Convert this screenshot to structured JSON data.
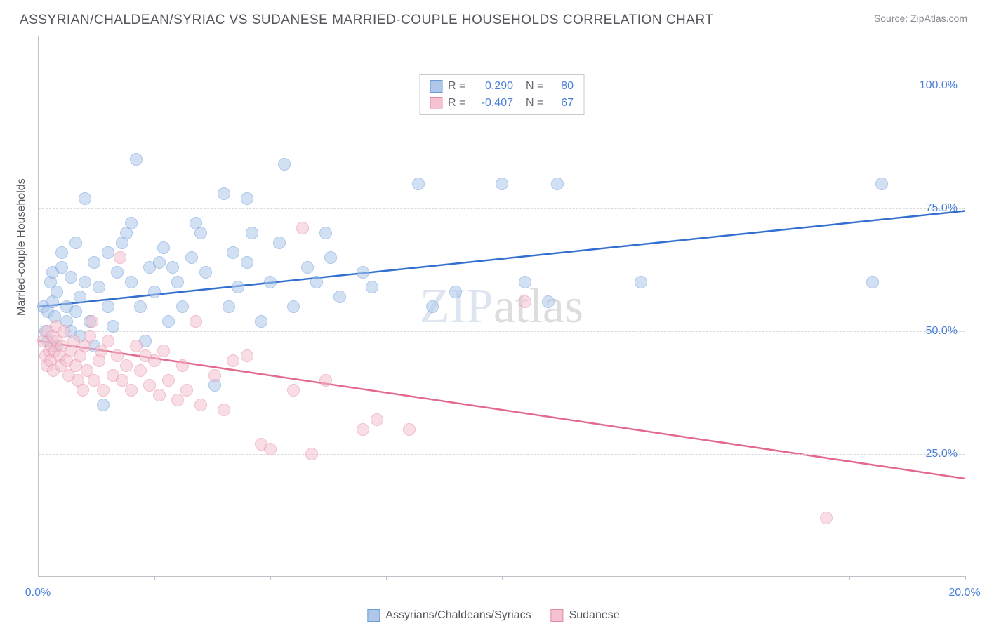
{
  "title": "ASSYRIAN/CHALDEAN/SYRIAC VS SUDANESE MARRIED-COUPLE HOUSEHOLDS CORRELATION CHART",
  "source": "Source: ZipAtlas.com",
  "watermark_z": "ZIP",
  "watermark_rest": "atlas",
  "y_axis_title": "Married-couple Households",
  "chart": {
    "type": "scatter",
    "xlim": [
      0,
      20
    ],
    "ylim": [
      0,
      110
    ],
    "x_ticks": [
      0,
      2.5,
      5,
      7.5,
      10,
      12.5,
      15,
      17.5,
      20
    ],
    "x_tick_labels": {
      "0": "0.0%",
      "20": "20.0%"
    },
    "y_gridlines": [
      25,
      50,
      75,
      100
    ],
    "y_tick_labels": {
      "25": "25.0%",
      "50": "50.0%",
      "75": "75.0%",
      "100": "100.0%"
    },
    "background_color": "#ffffff",
    "grid_color": "#d8d8de",
    "axis_color": "#c0c0c8",
    "tick_label_color": "#4a7fd8",
    "marker_radius": 9,
    "marker_opacity": 0.55,
    "series": [
      {
        "name": "Assyrians/Chaldeans/Syriacs",
        "fill_color": "#afc8ea",
        "stroke_color": "#6a9ad8",
        "line_color": "#336fd0",
        "R": "0.290",
        "N": "80",
        "trend": {
          "x1": 0,
          "y1": 55,
          "x2": 20,
          "y2": 74.5
        },
        "points": [
          [
            0.1,
            55
          ],
          [
            0.15,
            50
          ],
          [
            0.2,
            48
          ],
          [
            0.2,
            54
          ],
          [
            0.25,
            60
          ],
          [
            0.3,
            62
          ],
          [
            0.3,
            56
          ],
          [
            0.35,
            53
          ],
          [
            0.4,
            47
          ],
          [
            0.4,
            58
          ],
          [
            0.5,
            63
          ],
          [
            0.5,
            66
          ],
          [
            0.6,
            55
          ],
          [
            0.6,
            52
          ],
          [
            0.7,
            50
          ],
          [
            0.7,
            61
          ],
          [
            0.8,
            68
          ],
          [
            0.8,
            54
          ],
          [
            0.9,
            57
          ],
          [
            0.9,
            49
          ],
          [
            1.0,
            77
          ],
          [
            1.0,
            60
          ],
          [
            1.1,
            52
          ],
          [
            1.2,
            47
          ],
          [
            1.2,
            64
          ],
          [
            1.3,
            59
          ],
          [
            1.4,
            35
          ],
          [
            1.5,
            66
          ],
          [
            1.5,
            55
          ],
          [
            1.6,
            51
          ],
          [
            1.7,
            62
          ],
          [
            1.8,
            68
          ],
          [
            1.9,
            70
          ],
          [
            2.0,
            60
          ],
          [
            2.0,
            72
          ],
          [
            2.1,
            85
          ],
          [
            2.2,
            55
          ],
          [
            2.3,
            48
          ],
          [
            2.4,
            63
          ],
          [
            2.5,
            58
          ],
          [
            2.6,
            64
          ],
          [
            2.7,
            67
          ],
          [
            2.8,
            52
          ],
          [
            2.9,
            63
          ],
          [
            3.0,
            60
          ],
          [
            3.1,
            55
          ],
          [
            3.3,
            65
          ],
          [
            3.4,
            72
          ],
          [
            3.5,
            70
          ],
          [
            3.6,
            62
          ],
          [
            3.8,
            39
          ],
          [
            4.0,
            78
          ],
          [
            4.1,
            55
          ],
          [
            4.2,
            66
          ],
          [
            4.3,
            59
          ],
          [
            4.5,
            77
          ],
          [
            4.5,
            64
          ],
          [
            4.6,
            70
          ],
          [
            4.8,
            52
          ],
          [
            5.0,
            60
          ],
          [
            5.2,
            68
          ],
          [
            5.3,
            84
          ],
          [
            5.5,
            55
          ],
          [
            5.8,
            63
          ],
          [
            6.0,
            60
          ],
          [
            6.2,
            70
          ],
          [
            6.3,
            65
          ],
          [
            6.5,
            57
          ],
          [
            7.0,
            62
          ],
          [
            7.2,
            59
          ],
          [
            8.2,
            80
          ],
          [
            8.5,
            55
          ],
          [
            9.0,
            58
          ],
          [
            10.0,
            80
          ],
          [
            10.5,
            60
          ],
          [
            11.0,
            56
          ],
          [
            11.2,
            80
          ],
          [
            13.0,
            60
          ],
          [
            18.0,
            60
          ],
          [
            18.2,
            80
          ]
        ]
      },
      {
        "name": "Sudanese",
        "fill_color": "#f4c2d0",
        "stroke_color": "#e68aa3",
        "line_color": "#e36a8c",
        "R": "-0.407",
        "N": "67",
        "trend": {
          "x1": 0,
          "y1": 48,
          "x2": 20,
          "y2": 20
        },
        "points": [
          [
            0.1,
            48
          ],
          [
            0.15,
            45
          ],
          [
            0.18,
            43
          ],
          [
            0.2,
            50
          ],
          [
            0.22,
            46
          ],
          [
            0.25,
            44
          ],
          [
            0.28,
            47
          ],
          [
            0.3,
            49
          ],
          [
            0.32,
            42
          ],
          [
            0.35,
            46
          ],
          [
            0.38,
            51
          ],
          [
            0.4,
            48
          ],
          [
            0.45,
            45
          ],
          [
            0.48,
            43
          ],
          [
            0.5,
            47
          ],
          [
            0.55,
            50
          ],
          [
            0.6,
            44
          ],
          [
            0.65,
            41
          ],
          [
            0.7,
            46
          ],
          [
            0.75,
            48
          ],
          [
            0.8,
            43
          ],
          [
            0.85,
            40
          ],
          [
            0.9,
            45
          ],
          [
            0.95,
            38
          ],
          [
            1.0,
            47
          ],
          [
            1.05,
            42
          ],
          [
            1.1,
            49
          ],
          [
            1.15,
            52
          ],
          [
            1.2,
            40
          ],
          [
            1.3,
            44
          ],
          [
            1.35,
            46
          ],
          [
            1.4,
            38
          ],
          [
            1.5,
            48
          ],
          [
            1.6,
            41
          ],
          [
            1.7,
            45
          ],
          [
            1.75,
            65
          ],
          [
            1.8,
            40
          ],
          [
            1.9,
            43
          ],
          [
            2.0,
            38
          ],
          [
            2.1,
            47
          ],
          [
            2.2,
            42
          ],
          [
            2.3,
            45
          ],
          [
            2.4,
            39
          ],
          [
            2.5,
            44
          ],
          [
            2.6,
            37
          ],
          [
            2.7,
            46
          ],
          [
            2.8,
            40
          ],
          [
            3.0,
            36
          ],
          [
            3.1,
            43
          ],
          [
            3.2,
            38
          ],
          [
            3.4,
            52
          ],
          [
            3.5,
            35
          ],
          [
            3.8,
            41
          ],
          [
            4.0,
            34
          ],
          [
            4.2,
            44
          ],
          [
            4.5,
            45
          ],
          [
            4.8,
            27
          ],
          [
            5.0,
            26
          ],
          [
            5.5,
            38
          ],
          [
            5.7,
            71
          ],
          [
            5.9,
            25
          ],
          [
            6.2,
            40
          ],
          [
            7.0,
            30
          ],
          [
            7.3,
            32
          ],
          [
            8.0,
            30
          ],
          [
            10.5,
            56
          ],
          [
            17.0,
            12
          ]
        ]
      }
    ]
  },
  "legend_bottom": [
    {
      "label": "Assyrians/Chaldeans/Syriacs",
      "fill": "#afc8ea",
      "stroke": "#6a9ad8"
    },
    {
      "label": "Sudanese",
      "fill": "#f4c2d0",
      "stroke": "#e68aa3"
    }
  ]
}
